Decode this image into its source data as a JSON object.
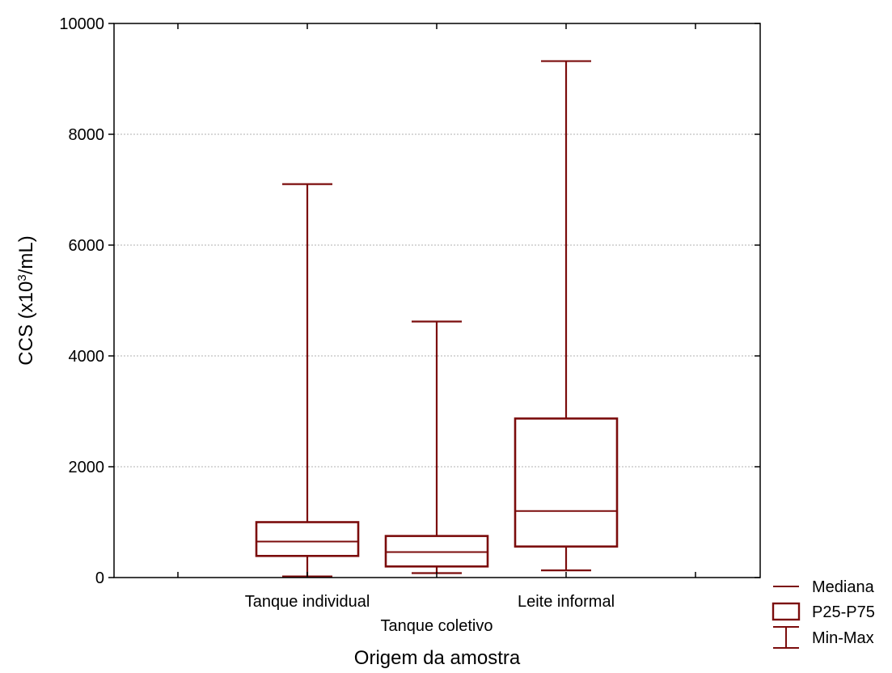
{
  "chart_data": {
    "type": "boxplot",
    "xlabel": "Origem da amostra",
    "ylabel_parts": [
      "CCS (x10",
      "3",
      "/mL)"
    ],
    "ylim": [
      0,
      10000
    ],
    "yticks": [
      0,
      2000,
      4000,
      6000,
      8000,
      10000
    ],
    "grid": true,
    "legend_position": "bottom-right, outside plot",
    "categories": [
      "Tanque individual",
      "Tanque coletivo",
      "Leite informal"
    ],
    "series": [
      {
        "stats": [
          {
            "min": 20,
            "p25": 390,
            "median": 650,
            "p75": 1000,
            "max": 7100
          },
          {
            "min": 80,
            "p25": 200,
            "median": 460,
            "p75": 750,
            "max": 4620
          },
          {
            "min": 130,
            "p25": 560,
            "median": 1200,
            "p75": 2870,
            "max": 9320
          }
        ]
      }
    ],
    "legend": [
      {
        "symbol": "median",
        "label": "Mediana"
      },
      {
        "symbol": "box",
        "label": "P25-P75"
      },
      {
        "symbol": "whisker",
        "label": "Min-Max"
      }
    ],
    "color": "#7b0c0c",
    "grid_color": "#b0b0b0"
  }
}
